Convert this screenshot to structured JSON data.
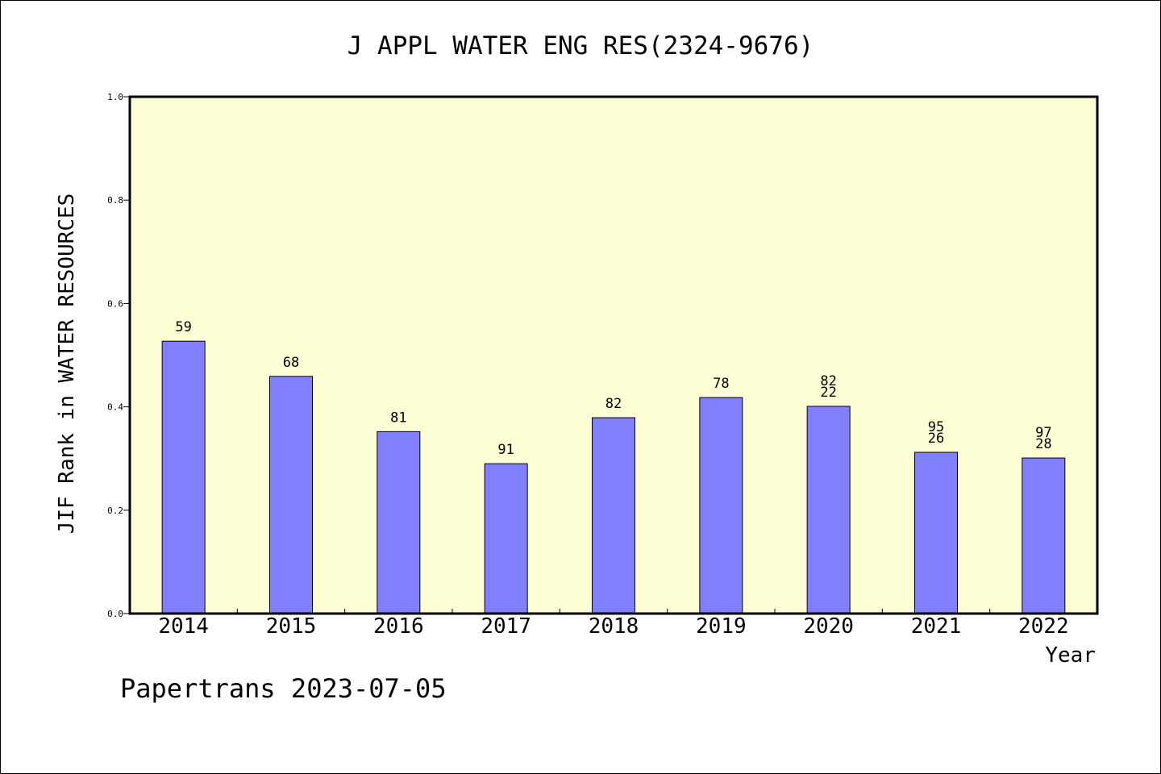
{
  "chart_data": {
    "type": "bar",
    "title": "J APPL WATER ENG RES(2324-9676)",
    "xlabel": "Year",
    "ylabel": "JIF Rank in WATER RESOURCES",
    "ylim": [
      0,
      1.0
    ],
    "yticks": [
      "0.0",
      "0.2",
      "0.4",
      "0.6",
      "0.8",
      "1.0"
    ],
    "categories": [
      "2014",
      "2015",
      "2016",
      "2017",
      "2018",
      "2019",
      "2020",
      "2021",
      "2022"
    ],
    "values": [
      0.527,
      0.459,
      0.352,
      0.29,
      0.379,
      0.418,
      0.401,
      0.312,
      0.301
    ],
    "bar_labels": [
      [
        "59"
      ],
      [
        "68"
      ],
      [
        "81"
      ],
      [
        "91"
      ],
      [
        "82"
      ],
      [
        "78"
      ],
      [
        "82",
        "22"
      ],
      [
        "95",
        "26"
      ],
      [
        "97",
        "28"
      ]
    ],
    "grid": false,
    "colors": {
      "bar": "#8080ff",
      "plot_background": "#ffffd5",
      "page_background": "#ffffff"
    }
  },
  "footer": "Papertrans 2023-07-05"
}
